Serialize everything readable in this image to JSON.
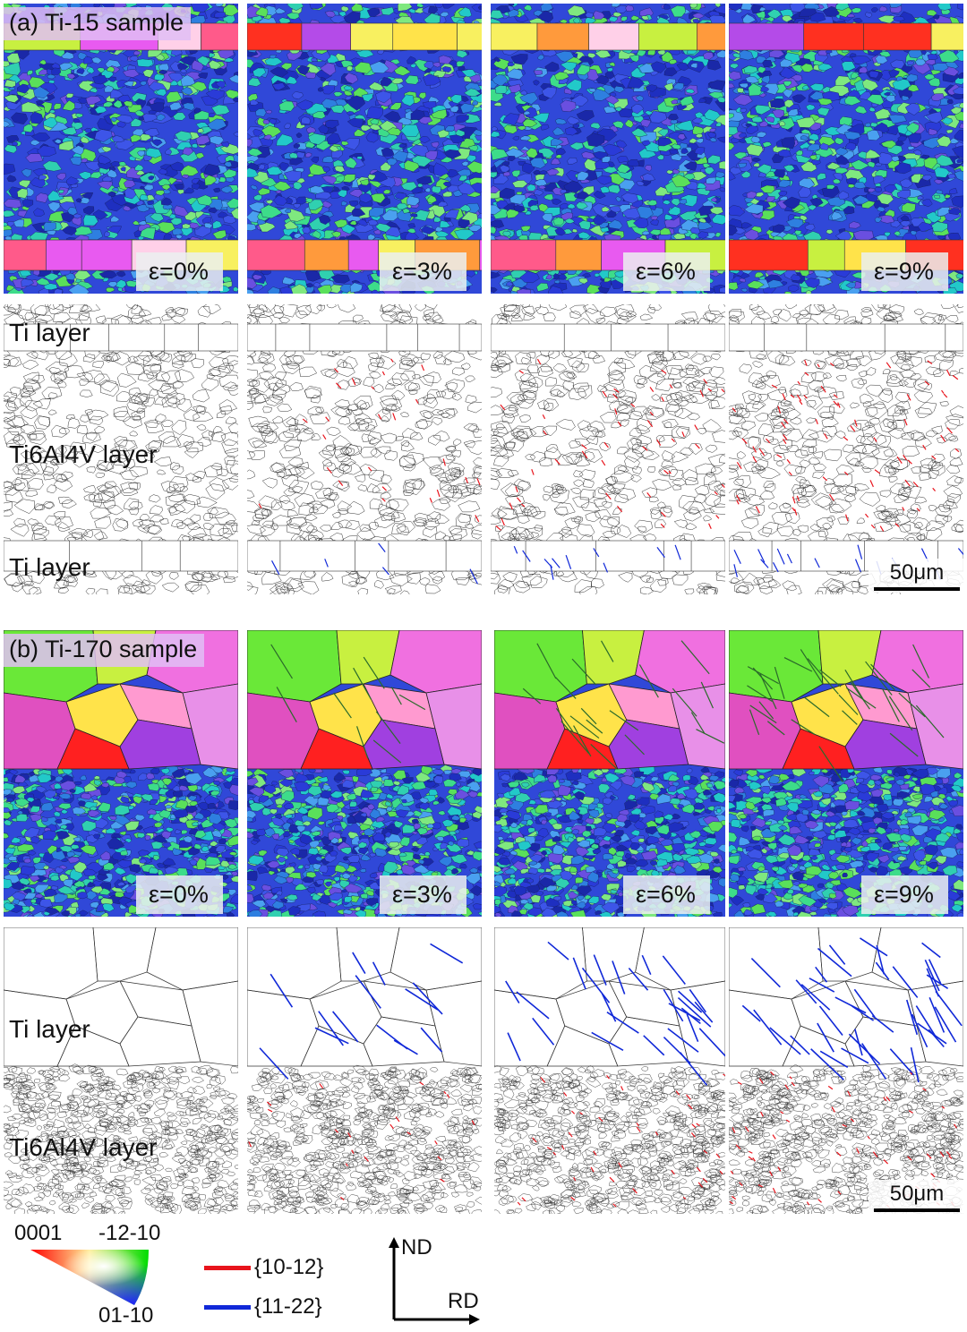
{
  "section_a": {
    "label": "(a) Ti-15 sample",
    "strains": [
      "ε=0%",
      "ε=3%",
      "ε=6%",
      "ε=9%"
    ],
    "layer_top": "Ti layer",
    "layer_mid": "Ti6Al4V layer",
    "layer_bottom": "Ti layer",
    "scale_bar": "50μm"
  },
  "section_b": {
    "label": "(b) Ti-170 sample",
    "strains": [
      "ε=0%",
      "ε=3%",
      "ε=6%",
      "ε=9%"
    ],
    "layer_top": "Ti layer",
    "layer_bottom": "Ti6Al4V layer",
    "scale_bar": "50μm"
  },
  "legend": {
    "ipf": {
      "corner_0001": "0001",
      "corner_1210": "-12-10",
      "corner_0110": "01-10"
    },
    "twins": [
      {
        "label": "{10-12}",
        "color": "#e8141c"
      },
      {
        "label": "{11-22}",
        "color": "#1028d8"
      }
    ],
    "axes": {
      "vertical": "ND",
      "horizontal": "RD"
    }
  },
  "colors": {
    "twin_1012": "#e8141c",
    "twin_1122": "#1028d8",
    "grain_boundary": "#222222"
  }
}
